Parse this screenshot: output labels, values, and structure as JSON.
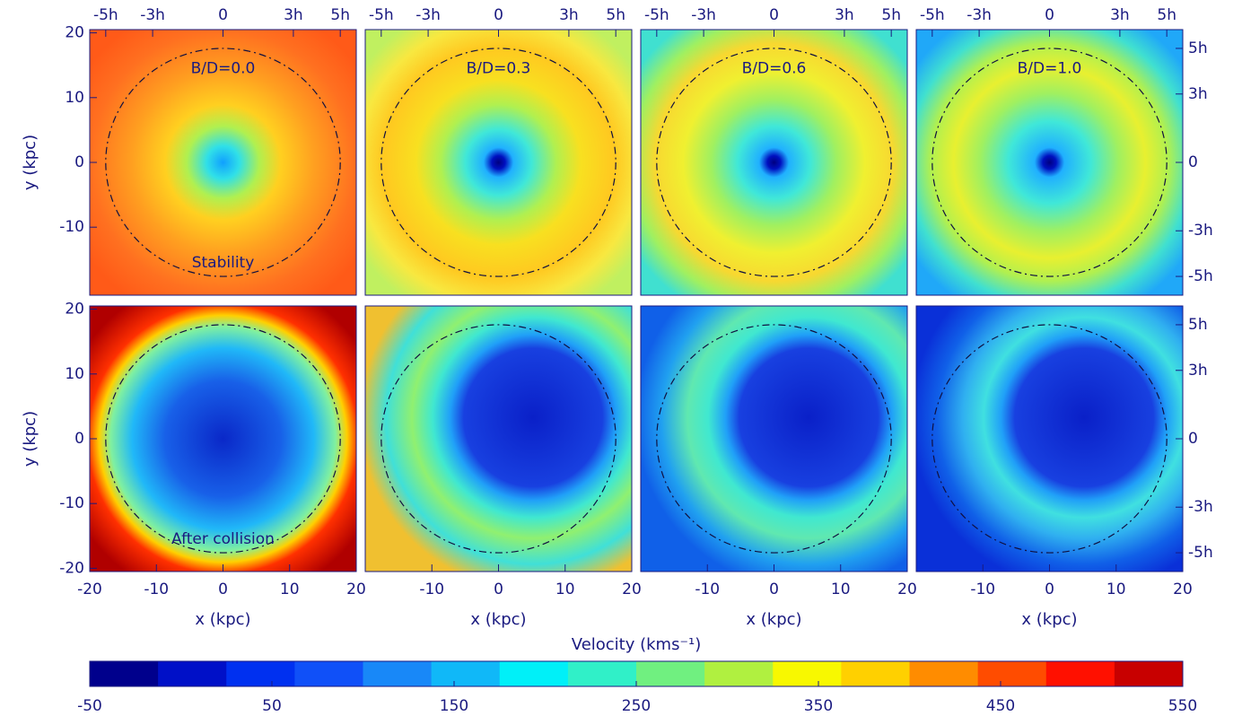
{
  "chart_data": [
    {
      "type": "heatmap",
      "label": "B/D=0.0",
      "annotation": "Stability",
      "ylabel": "y (kpc)",
      "xlim": [
        -20,
        20
      ],
      "ylim": [
        -20.5,
        20.5
      ],
      "yticks": [
        20,
        10,
        0,
        -10
      ],
      "x2ticks": [
        {
          "value": -17.6,
          "label": "-5h"
        },
        {
          "value": -10.56,
          "label": "-3h"
        },
        0,
        {
          "value": 10.56,
          "label": "3h"
        },
        {
          "value": 17.6,
          "label": "5h"
        }
      ]
    },
    {
      "type": "heatmap",
      "label": "B/D=0.3",
      "xlim": [
        -20,
        20
      ],
      "ylim": [
        -20.5,
        20.5
      ],
      "x2ticks": [
        {
          "value": -17.6,
          "label": "-5h"
        },
        {
          "value": -10.56,
          "label": "-3h"
        },
        0,
        {
          "value": 10.56,
          "label": "3h"
        },
        {
          "value": 17.6,
          "label": "5h"
        }
      ]
    },
    {
      "type": "heatmap",
      "label": "B/D=0.6",
      "xlim": [
        -20,
        20
      ],
      "ylim": [
        -20.5,
        20.5
      ],
      "x2ticks": [
        {
          "value": -17.6,
          "label": "-5h"
        },
        {
          "value": -10.56,
          "label": "-3h"
        },
        0,
        {
          "value": 10.56,
          "label": "3h"
        },
        {
          "value": 17.6,
          "label": "5h"
        }
      ]
    },
    {
      "type": "heatmap",
      "label": "B/D=1.0",
      "xlim": [
        -20,
        20
      ],
      "ylim": [
        -20.5,
        20.5
      ],
      "x2ticks": [
        {
          "value": -17.6,
          "label": "-5h"
        },
        {
          "value": -10.56,
          "label": "-3h"
        },
        0,
        {
          "value": 10.56,
          "label": "3h"
        },
        {
          "value": 17.6,
          "label": "5h"
        }
      ],
      "y2ticks": [
        {
          "value": 17.6,
          "label": "5h"
        },
        {
          "value": 10.56,
          "label": "3h"
        },
        0,
        {
          "value": -10.56,
          "label": "-3h"
        },
        {
          "value": -17.6,
          "label": "-5h"
        }
      ]
    },
    {
      "type": "heatmap",
      "annotation": "After collision",
      "ylabel": "y (kpc)",
      "xlabel": "x (kpc)",
      "xlim": [
        -20,
        20
      ],
      "ylim": [
        -20.5,
        20.5
      ],
      "yticks": [
        20,
        10,
        0,
        -10,
        -20
      ],
      "xticks": [
        -20,
        -10,
        0,
        10,
        20
      ]
    },
    {
      "type": "heatmap",
      "xlabel": "x (kpc)",
      "xlim": [
        -20,
        20
      ],
      "ylim": [
        -20.5,
        20.5
      ],
      "xticks": [
        -10,
        0,
        10,
        20
      ]
    },
    {
      "type": "heatmap",
      "xlabel": "x (kpc)",
      "xlim": [
        -20,
        20
      ],
      "ylim": [
        -20.5,
        20.5
      ],
      "xticks": [
        -10,
        0,
        10,
        20
      ]
    },
    {
      "type": "heatmap",
      "xlabel": "x (kpc)",
      "xlim": [
        -20,
        20
      ],
      "ylim": [
        -20.5,
        20.5
      ],
      "xticks": [
        -10,
        0,
        10,
        20
      ],
      "y2ticks": [
        {
          "value": 17.6,
          "label": "5h"
        },
        {
          "value": 10.56,
          "label": "3h"
        },
        0,
        {
          "value": -10.56,
          "label": "-3h"
        },
        {
          "value": -17.6,
          "label": "-5h"
        }
      ]
    },
    {
      "type": "colorbar",
      "title": "Velocity (kms⁻¹)",
      "xlim": [
        -50,
        550
      ],
      "xticks": [
        -50,
        50,
        150,
        250,
        350,
        450,
        550
      ],
      "colors": [
        "#00008c",
        "#0010c8",
        "#0030f0",
        "#1050f8",
        "#1888f8",
        "#10b8f8",
        "#00f0f8",
        "#30f0c8",
        "#70f080",
        "#b0f040",
        "#f8f800",
        "#ffd000",
        "#ff8c00",
        "#ff4c00",
        "#ff1000",
        "#c80000"
      ]
    }
  ]
}
